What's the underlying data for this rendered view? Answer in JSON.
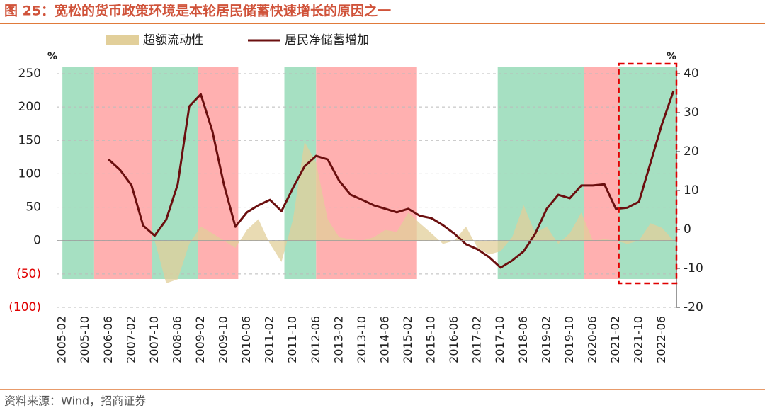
{
  "chart_data": {
    "type": "area_line",
    "title": "图 25：宽松的货币政策环境是本轮居民储蓄快速增长的原因之一",
    "source": "资料来源：Wind，招商证券",
    "y_unit": "%",
    "y2_unit": "%",
    "x": [
      "2005-02",
      "2005-06",
      "2005-10",
      "2006-02",
      "2006-06",
      "2006-10",
      "2007-02",
      "2007-06",
      "2007-10",
      "2008-02",
      "2008-06",
      "2008-10",
      "2009-02",
      "2009-06",
      "2009-10",
      "2010-02",
      "2010-06",
      "2010-10",
      "2011-02",
      "2011-06",
      "2011-10",
      "2012-02",
      "2012-06",
      "2012-10",
      "2013-02",
      "2013-06",
      "2013-10",
      "2014-02",
      "2014-06",
      "2014-10",
      "2015-02",
      "2015-06",
      "2015-10",
      "2016-02",
      "2016-06",
      "2016-10",
      "2017-02",
      "2017-06",
      "2017-10",
      "2018-02",
      "2018-06",
      "2018-10",
      "2019-02",
      "2019-06",
      "2019-10",
      "2020-02",
      "2020-06",
      "2020-10",
      "2021-02",
      "2021-06",
      "2021-10",
      "2022-02",
      "2022-06",
      "2022-10"
    ],
    "xlim": [
      "2004-12",
      "2022-11"
    ],
    "xticks": [
      "2005-02",
      "2005-10",
      "2006-06",
      "2007-02",
      "2007-10",
      "2008-06",
      "2009-02",
      "2009-10",
      "2010-06",
      "2011-02",
      "2011-10",
      "2012-06",
      "2013-02",
      "2013-10",
      "2014-06",
      "2015-02",
      "2015-10",
      "2016-06",
      "2017-02",
      "2017-10",
      "2018-06",
      "2019-02",
      "2019-10",
      "2020-06",
      "2021-02",
      "2021-10",
      "2022-06"
    ],
    "series": [
      {
        "name": "超额流动性",
        "type": "area",
        "color": "#e2cf9a",
        "axis": "y",
        "values": [
          0,
          0,
          0,
          0,
          0,
          0,
          0,
          0,
          0,
          -64,
          -58,
          -5,
          21,
          11,
          0,
          -11,
          16,
          32,
          -5,
          -32,
          32,
          148,
          117,
          32,
          5,
          2,
          0,
          5,
          16,
          13,
          42,
          26,
          11,
          -5,
          0,
          21,
          -11,
          -21,
          -16,
          5,
          53,
          11,
          21,
          -5,
          11,
          42,
          0,
          2,
          0,
          -5,
          0,
          26,
          19,
          0
        ]
      },
      {
        "name": "居民净储蓄增加",
        "type": "line",
        "color": "#6b0f0f",
        "axis": "y2",
        "values": [
          null,
          null,
          null,
          null,
          18,
          15.3,
          11.3,
          1,
          -1.6,
          2.5,
          11.6,
          31.6,
          34.7,
          25.3,
          11.6,
          0.7,
          4.4,
          6.2,
          7.6,
          4.7,
          10.7,
          16.2,
          18.9,
          18,
          12.5,
          8.9,
          7.6,
          6.2,
          5.3,
          4.4,
          5.3,
          3.5,
          2.9,
          1.1,
          -1.1,
          -3.8,
          -5.1,
          -7.1,
          -9.8,
          -8,
          -5.6,
          -1.1,
          5.3,
          8.9,
          8,
          11.3,
          11.3,
          11.6,
          5.3,
          5.6,
          7.1,
          17.1,
          27.1,
          35.6
        ]
      }
    ],
    "ylim": [
      -100,
      250
    ],
    "yticks": [
      250,
      200,
      150,
      100,
      50,
      0,
      {
        "value": -50,
        "label": "(50)"
      },
      {
        "value": -100,
        "label": "(100)"
      }
    ],
    "y2lim": [
      -20,
      40
    ],
    "y2ticks": [
      40,
      30,
      20,
      10,
      0,
      -10,
      -20
    ],
    "negative_tick_color": "#e00000",
    "grid": true,
    "legend": "top",
    "bands": [
      {
        "start": "2005-02",
        "end": "2006-01",
        "color": "#a6e0c2"
      },
      {
        "start": "2006-01",
        "end": "2007-09",
        "color": "#ffb0b0"
      },
      {
        "start": "2007-09",
        "end": "2009-01",
        "color": "#a6e0c2"
      },
      {
        "start": "2009-01",
        "end": "2010-03",
        "color": "#ffb0b0"
      },
      {
        "start": "2011-07",
        "end": "2012-06",
        "color": "#a6e0c2"
      },
      {
        "start": "2012-06",
        "end": "2015-05",
        "color": "#ffb0b0"
      },
      {
        "start": "2017-09",
        "end": "2020-03",
        "color": "#a6e0c2"
      },
      {
        "start": "2020-03",
        "end": "2021-03",
        "color": "#ffb0b0"
      },
      {
        "start": "2021-03",
        "end": "2022-11",
        "color": "#a6e0c2"
      }
    ],
    "highlight": {
      "start": "2021-03",
      "end": "2022-11",
      "color": "#e00000"
    }
  }
}
